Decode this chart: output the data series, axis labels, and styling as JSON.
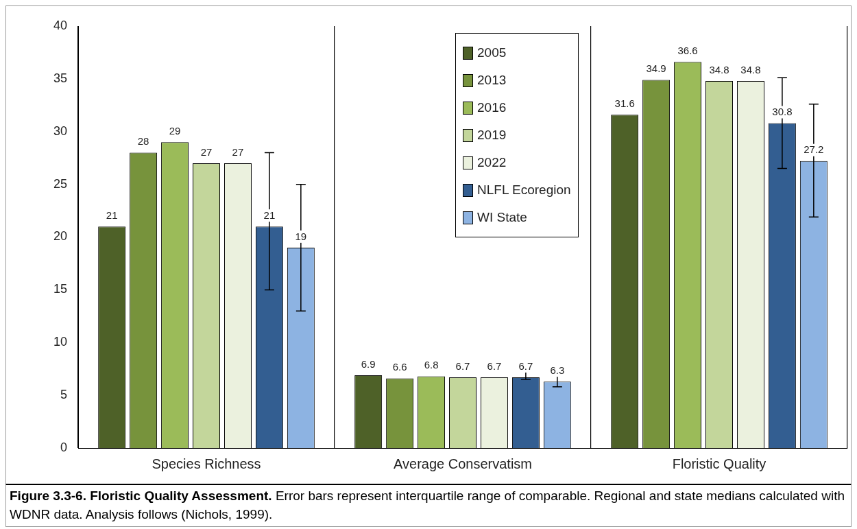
{
  "chart_data": {
    "type": "bar",
    "categories": [
      "Species Richness",
      "Average Conservatism",
      "Floristic Quality"
    ],
    "series": [
      {
        "name": "2005",
        "color": "#4e6128",
        "values": [
          21,
          6.9,
          31.6
        ]
      },
      {
        "name": "2013",
        "color": "#77933c",
        "values": [
          28,
          6.6,
          34.9
        ]
      },
      {
        "name": "2016",
        "color": "#9bbb59",
        "values": [
          29,
          6.8,
          36.6
        ]
      },
      {
        "name": "2019",
        "color": "#c3d69b",
        "values": [
          27,
          6.7,
          34.8
        ]
      },
      {
        "name": "2022",
        "color": "#ebf1de",
        "values": [
          27,
          6.7,
          34.8
        ]
      },
      {
        "name": "NLFL Ecoregion",
        "color": "#335e91",
        "values": [
          21,
          6.7,
          30.8
        ],
        "errors": [
          [
            15,
            28
          ],
          [
            6.5,
            7.3
          ],
          [
            26.5,
            35.1
          ]
        ]
      },
      {
        "name": "WI State",
        "color": "#8db3e2",
        "values": [
          19,
          6.3,
          27.2
        ],
        "errors": [
          [
            13,
            25
          ],
          [
            5.8,
            7.0
          ],
          [
            21.9,
            32.6
          ]
        ]
      }
    ],
    "ylim": [
      0,
      40
    ],
    "yticks": [
      0,
      5,
      10,
      15,
      20,
      25,
      30,
      35,
      40
    ],
    "grid": "x",
    "legend": "top",
    "data_labels": true,
    "annotations": [
      "Figure 3.3-6.  Floristic Quality Assessment.",
      "Error bars represent interquartile range of comparable. Regional and state medians calculated with WDNR data.  Analysis follows (Nichols, 1999)."
    ]
  }
}
